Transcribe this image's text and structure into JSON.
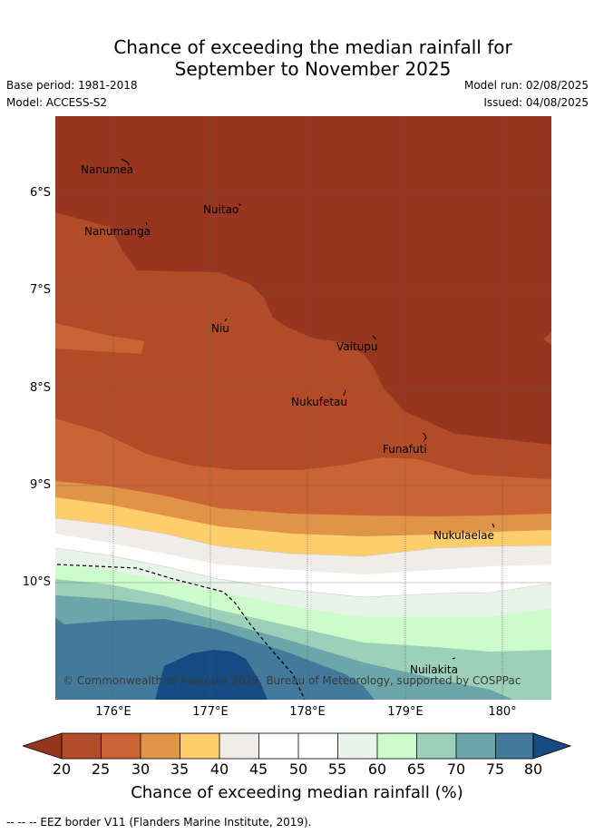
{
  "title": {
    "line1": "Chance of exceeding the median rainfall for",
    "line2": "September to November 2025"
  },
  "meta": {
    "base_period": "Base period: 1981-2018",
    "model": "Model: ACCESS-S2",
    "model_run": "Model run: 02/08/2025",
    "issued": "Issued: 04/08/2025"
  },
  "map": {
    "lon_range": [
      175.5,
      180.5
    ],
    "lat_range": [
      -11.2,
      -5.2
    ],
    "lat_ticks": [
      "6°S",
      "7°S",
      "8°S",
      "9°S",
      "10°S"
    ],
    "lon_ticks": [
      "176°E",
      "177°E",
      "178°E",
      "179°E",
      "180°"
    ],
    "places": [
      {
        "name": "Nanumea"
      },
      {
        "name": "Nuitao"
      },
      {
        "name": "Nanumanga"
      },
      {
        "name": "Niu"
      },
      {
        "name": "Vaitupu"
      },
      {
        "name": "Nukufetau"
      },
      {
        "name": "Funafuti"
      },
      {
        "name": "Nukulaelae"
      },
      {
        "name": "Nuilakita"
      }
    ],
    "copyright": "© Commonwealth of Australia 2025, Bureau of Meteorology, supported by COSPPac",
    "eez_border": "dashed"
  },
  "colorbar": {
    "ticks": [
      "20",
      "25",
      "30",
      "35",
      "40",
      "45",
      "50",
      "55",
      "60",
      "65",
      "70",
      "75",
      "80"
    ],
    "colors": {
      "below_20": "#97361f",
      "c20_25": "#b24b28",
      "c25_30": "#ca6434",
      "c30_35": "#e09447",
      "c35_40": "#fecd6c",
      "c40_45": "#f0ece8",
      "c45_55": "#ffffff",
      "c55_60": "#e9f4e8",
      "c60_65": "#ccfccc",
      "c65_70": "#9dd0b9",
      "c70_75": "#6da6aa",
      "c75_80": "#437a9b",
      "above_80": "#144b82"
    },
    "title": "Chance of exceeding median rainfall (%)"
  },
  "footer": "--  --  -- EEZ border V11 (Flanders Marine Institute, 2019)."
}
